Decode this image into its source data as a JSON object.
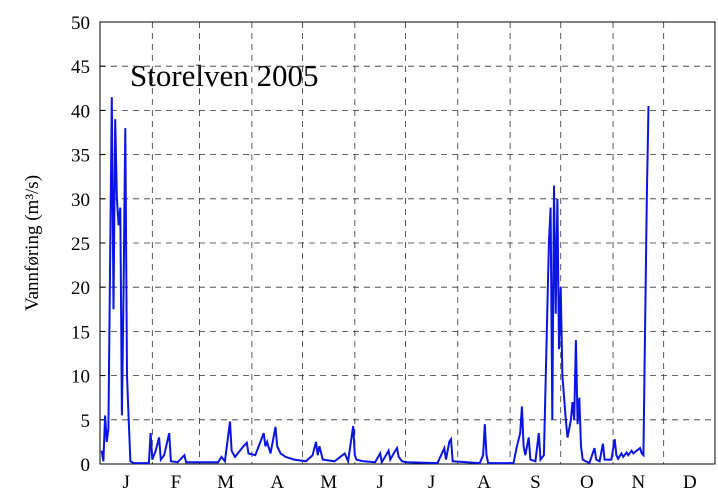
{
  "chart_data": {
    "type": "line",
    "title": "Storelven  2005",
    "y_label": "Vannføring (m³/s)",
    "xlim": [
      0,
      365
    ],
    "ylim": [
      0,
      50
    ],
    "yticks": [
      0,
      5,
      10,
      15,
      20,
      25,
      30,
      35,
      40,
      45,
      50
    ],
    "xticks": [
      {
        "value": 15.5,
        "label": "J"
      },
      {
        "value": 45,
        "label": "F"
      },
      {
        "value": 74.5,
        "label": "M"
      },
      {
        "value": 105,
        "label": "A"
      },
      {
        "value": 135.5,
        "label": "M"
      },
      {
        "value": 166,
        "label": "J"
      },
      {
        "value": 196.5,
        "label": "J"
      },
      {
        "value": 227.5,
        "label": "A"
      },
      {
        "value": 258,
        "label": "S"
      },
      {
        "value": 288.5,
        "label": "O"
      },
      {
        "value": 319,
        "label": "N"
      },
      {
        "value": 349.5,
        "label": "D"
      }
    ],
    "xgrid": [
      31,
      59,
      90,
      120,
      151,
      181,
      212,
      243,
      273,
      304,
      334
    ],
    "grid": true,
    "series": [
      {
        "color": "#0a14e6",
        "x": [
          1,
          2,
          3,
          4,
          5,
          7,
          8,
          9,
          10,
          11,
          12,
          13,
          14,
          15,
          16,
          17,
          18,
          20,
          29,
          30,
          31,
          33,
          35,
          36,
          38,
          41,
          42,
          46,
          50,
          51,
          70,
          72,
          74,
          77,
          78,
          80,
          85,
          87,
          88,
          92,
          97,
          98,
          99,
          101,
          104,
          105,
          107,
          110,
          115,
          122,
          126,
          128,
          129,
          130,
          132,
          139,
          145,
          147,
          150,
          151,
          152,
          156,
          163,
          166,
          167,
          171,
          172,
          174,
          176,
          177,
          179,
          182,
          200,
          204,
          205,
          207,
          208,
          209,
          225,
          227,
          228,
          229,
          230,
          245,
          247,
          249,
          250,
          251,
          252,
          254,
          255,
          258,
          260,
          261,
          263,
          266,
          267,
          268,
          269,
          270,
          271,
          272,
          273,
          274,
          276,
          277,
          279,
          280,
          281,
          282,
          283,
          284,
          285,
          286,
          290,
          293,
          294,
          296,
          298,
          299,
          303,
          305,
          306,
          307,
          309,
          310,
          312,
          313,
          315,
          316,
          318,
          320,
          321,
          322,
          324,
          325
        ],
        "values": [
          1.5,
          0.3,
          5.5,
          2.5,
          4,
          41.5,
          17.5,
          39,
          30,
          27,
          29,
          5.5,
          20,
          38,
          10,
          5,
          0.3,
          0.1,
          0.1,
          3.5,
          0.5,
          1.5,
          3,
          0.5,
          1,
          3.5,
          0.3,
          0.2,
          1,
          0.2,
          0.2,
          0.8,
          0.3,
          4.8,
          1.5,
          0.8,
          2,
          2.4,
          1.2,
          1,
          3.5,
          2,
          2.5,
          1.2,
          4.2,
          2,
          1.2,
          0.8,
          0.5,
          0.3,
          1,
          2.5,
          1,
          2,
          0.5,
          0.3,
          1.2,
          0.3,
          4.3,
          1,
          0.5,
          0.3,
          0.2,
          1.2,
          0.2,
          1.5,
          0.5,
          1.2,
          1.8,
          0.8,
          0.3,
          0.2,
          0.1,
          1.8,
          0.5,
          2.5,
          2.8,
          0.3,
          0.1,
          1,
          4.5,
          1,
          0.1,
          0.1,
          2,
          3.5,
          6.5,
          2,
          1,
          3,
          0.5,
          0.3,
          3.5,
          0.5,
          1,
          25,
          29,
          5,
          31.5,
          17,
          30,
          13,
          20,
          10,
          5,
          3,
          5,
          7,
          5,
          14,
          4.5,
          7.5,
          2,
          0.5,
          0.1,
          1.8,
          0.5,
          0.3,
          2.3,
          0.5,
          0.5,
          2.8,
          1,
          0.6,
          1.2,
          0.8,
          1.3,
          1,
          1.5,
          1.2,
          1.5,
          1.8,
          1.2,
          1,
          30,
          40.5
        ]
      }
    ]
  }
}
